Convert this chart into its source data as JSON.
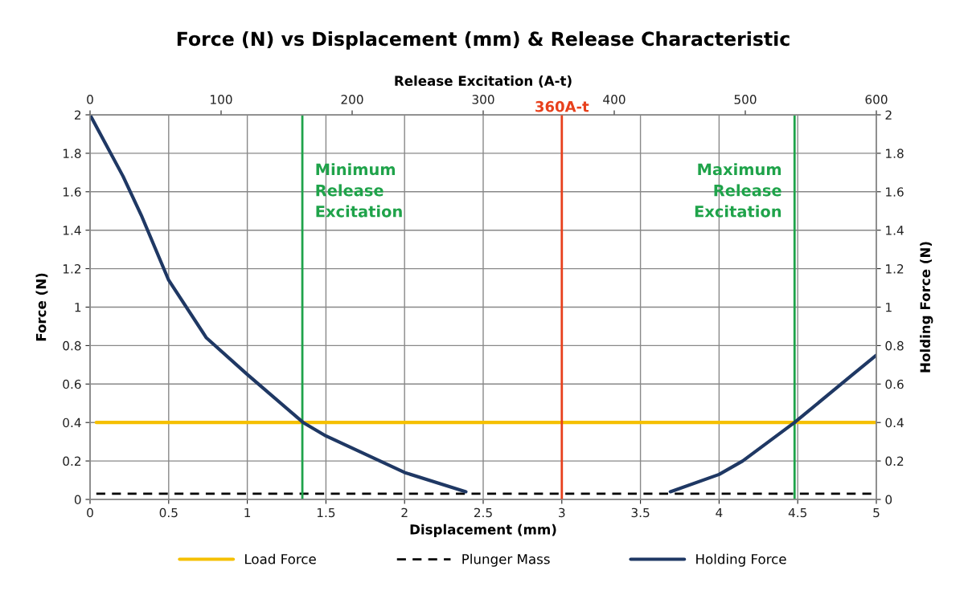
{
  "chart_data": {
    "type": "line",
    "title": "Force (N) vs Displacement (mm) & Release Characteristic",
    "xlabel": "Displacement (mm)",
    "ylabel": "Force (N)",
    "y2label": "Holding Force (N)",
    "x2label": "Release Excitation (A-t)",
    "xlim": [
      0,
      5
    ],
    "xticks": [
      0,
      0.5,
      1,
      1.5,
      2,
      2.5,
      3,
      3.5,
      4,
      4.5,
      5
    ],
    "ylim": [
      0,
      2
    ],
    "yticks": [
      0,
      0.2,
      0.4,
      0.6,
      0.8,
      1,
      1.2,
      1.4,
      1.6,
      1.8,
      2
    ],
    "y2lim": [
      0,
      2
    ],
    "y2ticks": [
      0,
      0.2,
      0.4,
      0.6,
      0.8,
      1,
      1.2,
      1.4,
      1.6,
      1.8,
      2
    ],
    "x2lim": [
      0,
      600
    ],
    "x2ticks": [
      0,
      100,
      200,
      300,
      400,
      500,
      600
    ],
    "grid": true,
    "legend": "bottom",
    "series": [
      {
        "name": "Load Force",
        "color": "#f5c000",
        "line_style": "solid",
        "x": [
          0.04,
          5
        ],
        "values": [
          0.4,
          0.4
        ]
      },
      {
        "name": "Plunger Mass",
        "color": "#000000",
        "line_style": "dashed",
        "x": [
          0.04,
          5
        ],
        "values": [
          0.03,
          0.03
        ]
      },
      {
        "name": "Holding Force",
        "color": "#1f3864",
        "line_style": "solid",
        "axis": "y2",
        "x": [
          0,
          0.21,
          0.33,
          0.5,
          0.74,
          1.0,
          1.355,
          1.5,
          2.0,
          2.39,
          null,
          3.69,
          4.0,
          4.15,
          4.48,
          4.85,
          5.0
        ],
        "values": [
          2.0,
          1.68,
          1.47,
          1.14,
          0.84,
          0.65,
          0.4,
          0.33,
          0.14,
          0.04,
          null,
          0.04,
          0.13,
          0.2,
          0.4,
          0.65,
          0.75
        ]
      }
    ],
    "ref_lines": [
      {
        "axis": "x",
        "value": 1.35,
        "label": "Minimum Release Excitation",
        "color": "#1fa34a"
      },
      {
        "axis": "x",
        "value": 4.48,
        "label": "Maximum Release Excitation",
        "color": "#1fa34a"
      },
      {
        "axis": "x2",
        "value": 360,
        "label": "360A-t",
        "color": "#e8401c"
      }
    ]
  }
}
